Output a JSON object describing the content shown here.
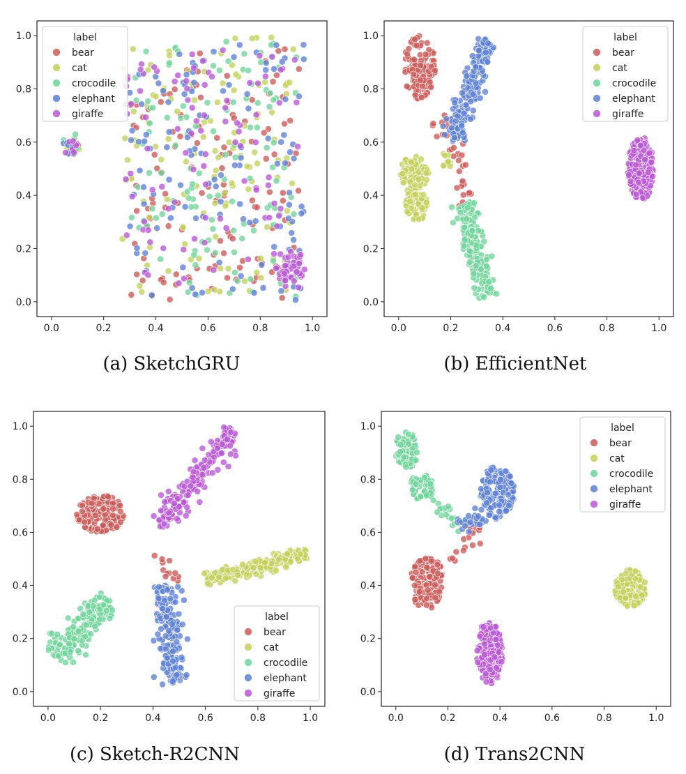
{
  "classes": [
    "bear",
    "cat",
    "crocodile",
    "elephant",
    "giraffe"
  ],
  "colors": {
    "bear": "#cc5a57",
    "cat": "#c3d05a",
    "crocodile": "#6fd49a",
    "elephant": "#5c80d6",
    "giraffe": "#b856d6"
  },
  "chart_data": [
    {
      "id": "a",
      "type": "scatter",
      "caption": "(a)  SketchGRU",
      "xlim": [
        0,
        1.0
      ],
      "ylim": [
        0,
        1.0
      ],
      "xticks": [
        "0.0",
        "0.2",
        "0.4",
        "0.6",
        "0.8",
        "1.0"
      ],
      "yticks": [
        "0.0",
        "0.2",
        "0.4",
        "0.6",
        "0.8",
        "1.0"
      ],
      "legend": {
        "title": "label",
        "position": "top-left",
        "entries": [
          "bear",
          "cat",
          "crocodile",
          "elephant",
          "giraffe"
        ]
      },
      "clusters": [
        {
          "label": "bear",
          "cx": 0.08,
          "cy": 0.585,
          "rx": 0.035,
          "ry": 0.03,
          "n": 5,
          "shape": "ellipse"
        },
        {
          "label": "cat",
          "cx": 0.09,
          "cy": 0.59,
          "rx": 0.035,
          "ry": 0.03,
          "n": 6,
          "shape": "ellipse"
        },
        {
          "label": "crocodile",
          "cx": 0.08,
          "cy": 0.6,
          "rx": 0.035,
          "ry": 0.035,
          "n": 5,
          "shape": "ellipse"
        },
        {
          "label": "elephant",
          "cx": 0.075,
          "cy": 0.58,
          "rx": 0.035,
          "ry": 0.03,
          "n": 7,
          "shape": "ellipse"
        },
        {
          "label": "giraffe",
          "cx": 0.07,
          "cy": 0.58,
          "rx": 0.035,
          "ry": 0.03,
          "n": 7,
          "shape": "ellipse"
        },
        {
          "label": "bear",
          "x0": 0.3,
          "x1": 0.95,
          "y0": 0.0,
          "y1": 0.95,
          "n": 120,
          "shape": "rect"
        },
        {
          "label": "cat",
          "x0": 0.27,
          "x1": 0.93,
          "y0": 0.02,
          "y1": 1.0,
          "n": 120,
          "shape": "rect"
        },
        {
          "label": "crocodile",
          "x0": 0.27,
          "x1": 0.95,
          "y0": 0.02,
          "y1": 0.98,
          "n": 120,
          "shape": "rect"
        },
        {
          "label": "elephant",
          "x0": 0.3,
          "x1": 0.97,
          "y0": 0.0,
          "y1": 0.98,
          "n": 120,
          "shape": "rect"
        },
        {
          "label": "giraffe",
          "x0": 0.27,
          "x1": 0.95,
          "y0": 0.05,
          "y1": 0.95,
          "n": 100,
          "shape": "rect"
        },
        {
          "label": "giraffe",
          "cx": 0.92,
          "cy": 0.13,
          "rx": 0.06,
          "ry": 0.06,
          "n": 40,
          "shape": "ellipse"
        }
      ]
    },
    {
      "id": "b",
      "type": "scatter",
      "caption": "(b)  EfficientNet",
      "xlim": [
        0,
        1.0
      ],
      "ylim": [
        0,
        1.0
      ],
      "xticks": [
        "0.0",
        "0.2",
        "0.4",
        "0.6",
        "0.8",
        "1.0"
      ],
      "yticks": [
        "0.0",
        "0.2",
        "0.4",
        "0.6",
        "0.8",
        "1.0"
      ],
      "legend": {
        "title": "label",
        "position": "top-right",
        "entries": [
          "bear",
          "cat",
          "crocodile",
          "elephant",
          "giraffe"
        ]
      },
      "clusters": [
        {
          "label": "bear",
          "cx": 0.08,
          "cy": 0.88,
          "rx": 0.06,
          "ry": 0.12,
          "n": 110,
          "shape": "ellipse"
        },
        {
          "label": "bear",
          "x0": 0.17,
          "y0": 0.7,
          "x1": 0.27,
          "y1": 0.36,
          "w": 0.03,
          "n": 35,
          "shape": "line"
        },
        {
          "label": "cat",
          "cx": 0.06,
          "cy": 0.48,
          "rx": 0.055,
          "ry": 0.07,
          "n": 70,
          "shape": "ellipse"
        },
        {
          "label": "cat",
          "cx": 0.065,
          "cy": 0.36,
          "rx": 0.045,
          "ry": 0.06,
          "n": 55,
          "shape": "ellipse"
        },
        {
          "label": "cat",
          "cx": 0.18,
          "cy": 0.52,
          "rx": 0.025,
          "ry": 0.04,
          "n": 10,
          "shape": "ellipse"
        },
        {
          "label": "crocodile",
          "x0": 0.25,
          "y0": 0.37,
          "x1": 0.34,
          "y1": 0.02,
          "w": 0.035,
          "n": 190,
          "shape": "line"
        },
        {
          "label": "elephant",
          "x0": 0.21,
          "y0": 0.6,
          "x1": 0.34,
          "y1": 0.99,
          "w": 0.035,
          "n": 180,
          "shape": "line"
        },
        {
          "label": "giraffe",
          "cx": 0.93,
          "cy": 0.5,
          "rx": 0.05,
          "ry": 0.12,
          "n": 190,
          "shape": "ellipse"
        }
      ]
    },
    {
      "id": "c",
      "type": "scatter",
      "caption": "(c)  Sketch-R2CNN",
      "xlim": [
        0,
        1.0
      ],
      "ylim": [
        0,
        1.0
      ],
      "xticks": [
        "0.0",
        "0.2",
        "0.4",
        "0.6",
        "0.8",
        "1.0"
      ],
      "yticks": [
        "0.0",
        "0.2",
        "0.4",
        "0.6",
        "0.8",
        "1.0"
      ],
      "legend": {
        "title": "label",
        "position": "lower-right",
        "entries": [
          "bear",
          "cat",
          "crocodile",
          "elephant",
          "giraffe"
        ]
      },
      "clusters": [
        {
          "label": "bear",
          "cx": 0.2,
          "cy": 0.67,
          "rx": 0.09,
          "ry": 0.07,
          "n": 160,
          "shape": "ellipse"
        },
        {
          "label": "bear",
          "x0": 0.41,
          "y0": 0.52,
          "x1": 0.5,
          "y1": 0.42,
          "w": 0.02,
          "n": 12,
          "shape": "line"
        },
        {
          "label": "cat",
          "x0": 0.6,
          "y0": 0.42,
          "x1": 0.99,
          "y1": 0.52,
          "w": 0.025,
          "n": 180,
          "shape": "line"
        },
        {
          "label": "crocodile",
          "x0": 0.03,
          "y0": 0.13,
          "x1": 0.23,
          "y1": 0.35,
          "w": 0.05,
          "n": 160,
          "shape": "line"
        },
        {
          "label": "elephant",
          "x0": 0.44,
          "y0": 0.4,
          "x1": 0.48,
          "y1": 0.03,
          "w": 0.04,
          "n": 200,
          "shape": "line"
        },
        {
          "label": "giraffe",
          "x0": 0.42,
          "y0": 0.62,
          "x1": 0.71,
          "y1": 0.98,
          "w": 0.04,
          "n": 190,
          "shape": "line"
        }
      ]
    },
    {
      "id": "d",
      "type": "scatter",
      "caption": "(d)  Trans2CNN",
      "xlim": [
        0,
        1.0
      ],
      "ylim": [
        0,
        1.0
      ],
      "xticks": [
        "0.0",
        "0.2",
        "0.4",
        "0.6",
        "0.8",
        "1.0"
      ],
      "yticks": [
        "0.0",
        "0.2",
        "0.4",
        "0.6",
        "0.8",
        "1.0"
      ],
      "legend": {
        "title": "label",
        "position": "top-right",
        "entries": [
          "bear",
          "cat",
          "crocodile",
          "elephant",
          "giraffe"
        ]
      },
      "clusters": [
        {
          "label": "bear",
          "cx": 0.12,
          "cy": 0.41,
          "rx": 0.065,
          "ry": 0.1,
          "n": 150,
          "shape": "ellipse"
        },
        {
          "label": "bear",
          "x0": 0.2,
          "y0": 0.48,
          "x1": 0.33,
          "y1": 0.64,
          "w": 0.03,
          "n": 18,
          "shape": "line"
        },
        {
          "label": "cat",
          "cx": 0.9,
          "cy": 0.39,
          "rx": 0.06,
          "ry": 0.07,
          "n": 160,
          "shape": "ellipse"
        },
        {
          "label": "crocodile",
          "cx": 0.04,
          "cy": 0.91,
          "rx": 0.045,
          "ry": 0.07,
          "n": 80,
          "shape": "ellipse"
        },
        {
          "label": "crocodile",
          "cx": 0.1,
          "cy": 0.77,
          "rx": 0.05,
          "ry": 0.05,
          "n": 60,
          "shape": "ellipse"
        },
        {
          "label": "crocodile",
          "x0": 0.14,
          "y0": 0.73,
          "x1": 0.26,
          "y1": 0.62,
          "w": 0.025,
          "n": 20,
          "shape": "line"
        },
        {
          "label": "elephant",
          "cx": 0.39,
          "cy": 0.75,
          "rx": 0.065,
          "ry": 0.1,
          "n": 160,
          "shape": "ellipse"
        },
        {
          "label": "elephant",
          "x0": 0.24,
          "y0": 0.62,
          "x1": 0.34,
          "y1": 0.66,
          "w": 0.025,
          "n": 30,
          "shape": "line"
        },
        {
          "label": "giraffe",
          "cx": 0.36,
          "cy": 0.15,
          "rx": 0.05,
          "ry": 0.12,
          "n": 170,
          "shape": "ellipse"
        }
      ]
    }
  ]
}
